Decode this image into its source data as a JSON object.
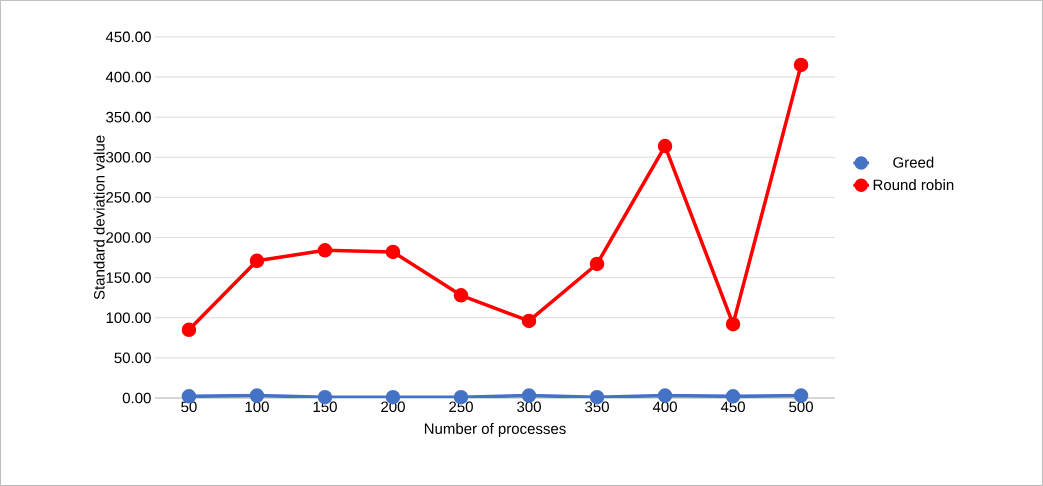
{
  "chart_data": {
    "type": "line",
    "xlabel": "Number of processes",
    "ylabel": "Standard deviation value",
    "categories": [
      "50",
      "100",
      "150",
      "200",
      "250",
      "300",
      "350",
      "400",
      "450",
      "500"
    ],
    "series": [
      {
        "name": "Greed",
        "color": "#4472c4",
        "values": [
          2,
          3,
          1,
          1,
          1,
          3,
          1,
          3,
          2,
          3
        ]
      },
      {
        "name": "Round robin",
        "color": "#ff0000",
        "values": [
          85,
          171,
          184,
          182,
          128,
          96,
          167,
          314,
          92,
          415
        ]
      }
    ],
    "ylim": [
      0,
      450
    ],
    "yticks": [
      {
        "value": 0,
        "label": "0.00"
      },
      {
        "value": 50,
        "label": "50.00"
      },
      {
        "value": 100,
        "label": "100.00"
      },
      {
        "value": 150,
        "label": "150.00"
      },
      {
        "value": 200,
        "label": "200.00"
      },
      {
        "value": 250,
        "label": "250.00"
      },
      {
        "value": 300,
        "label": "300.00"
      },
      {
        "value": 350,
        "label": "350.00"
      },
      {
        "value": 400,
        "label": "400.00"
      },
      {
        "value": 450,
        "label": "450.00"
      }
    ],
    "grid": "y",
    "legend": "right",
    "marker": "circle",
    "line_style": "solid"
  }
}
